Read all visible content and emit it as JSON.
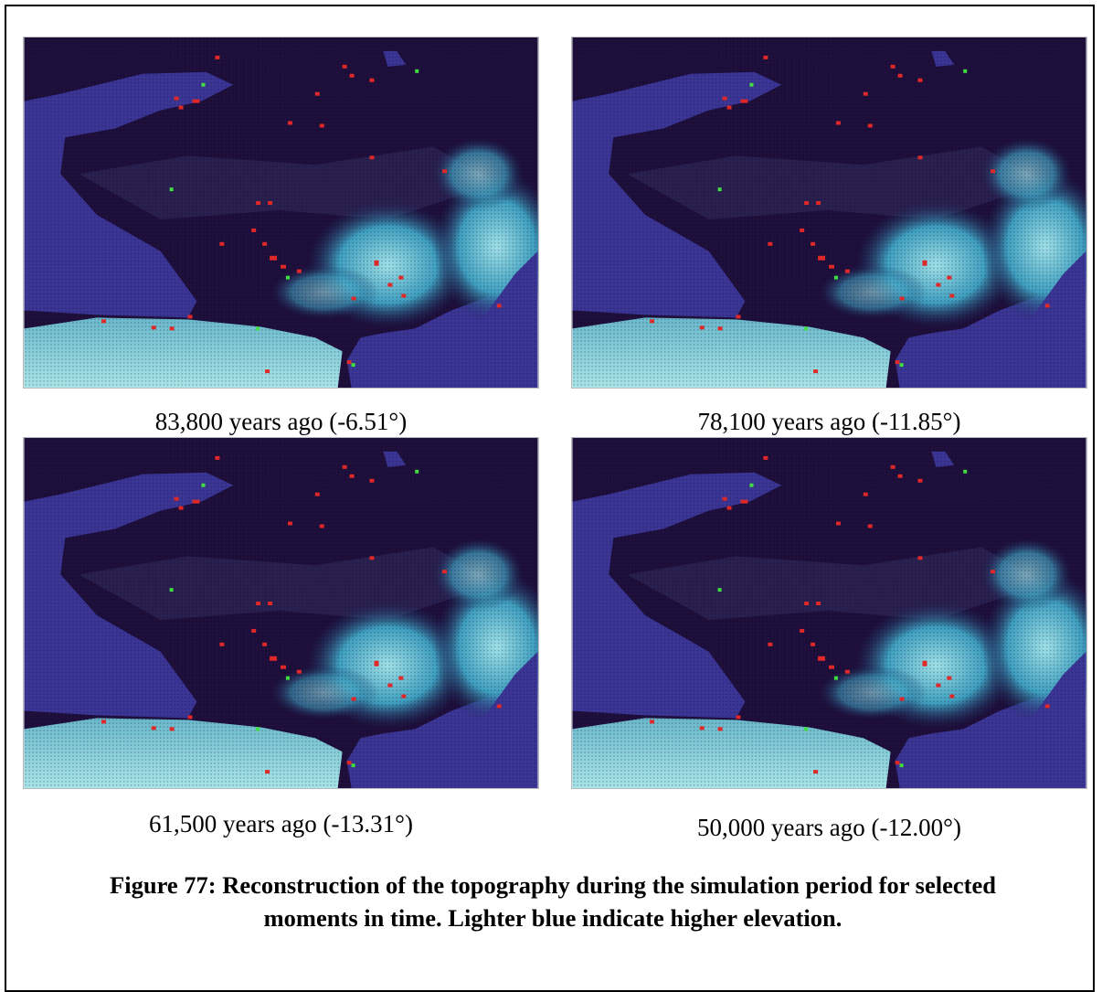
{
  "panels": [
    {
      "caption": "83,800 years ago (-6.51°)"
    },
    {
      "caption": "78,100 years ago (-11.85°)"
    },
    {
      "caption": "61,500 years ago (-13.31°)"
    },
    {
      "caption": "50,000 years ago (-12.00°)"
    }
  ],
  "figure": {
    "caption": "Figure 77: Reconstruction of the topography during the simulation period for selected moments in time. Lighter blue indicate higher elevation."
  }
}
